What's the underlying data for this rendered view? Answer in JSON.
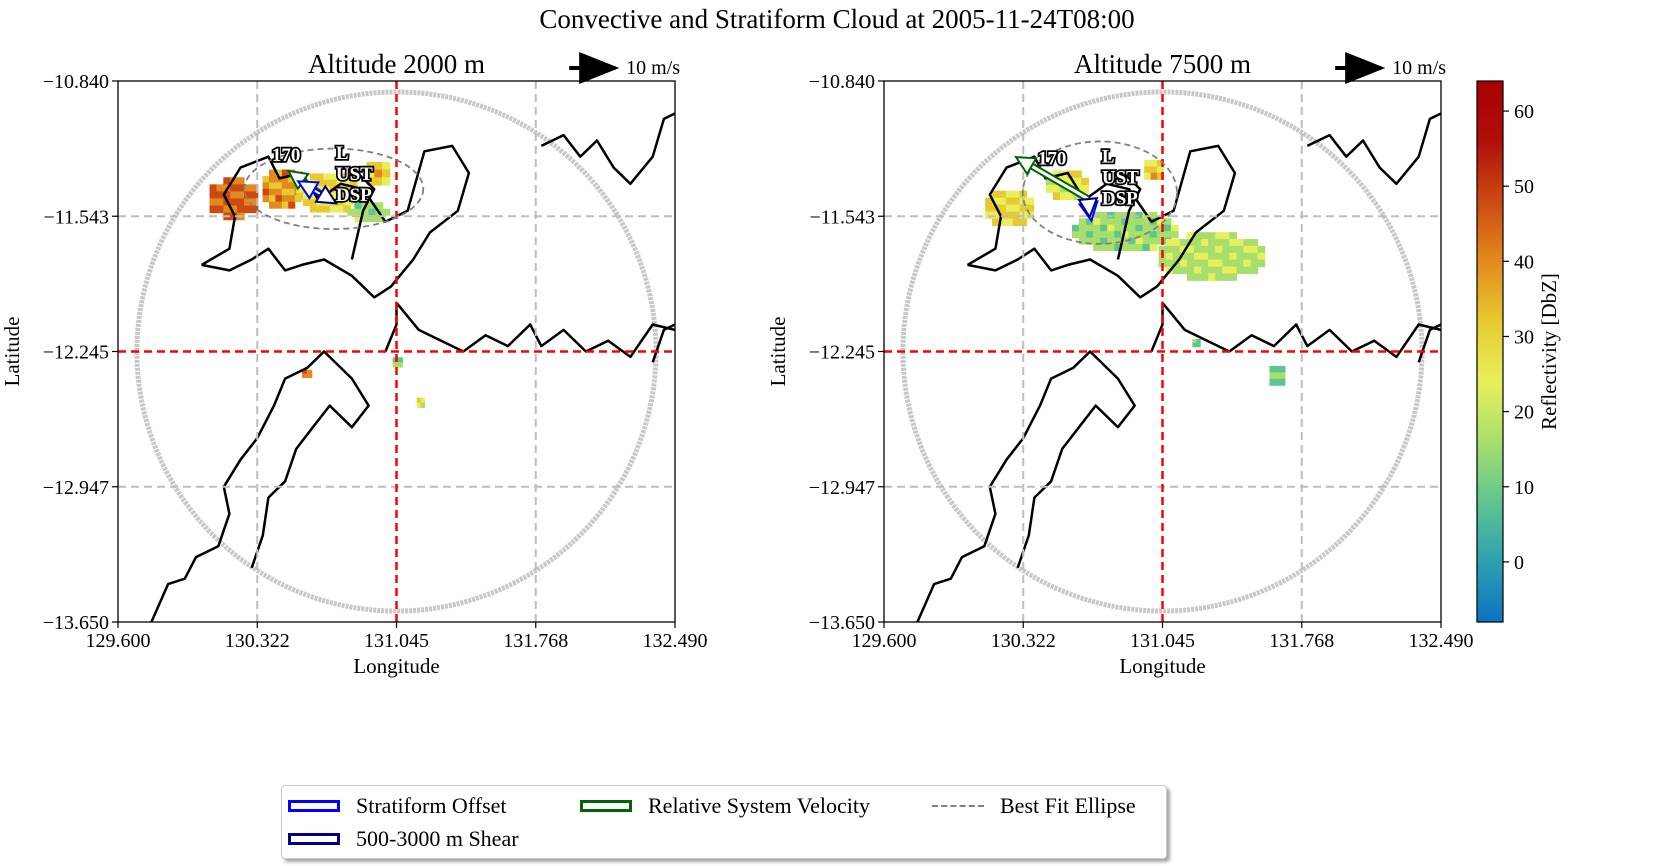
{
  "title": "Convective and Stratiform Cloud at 2005-11-24T08:00",
  "chart_data": [
    {
      "type": "heatmap",
      "title": "Altitude 2000 m",
      "xlabel": "Longitude",
      "ylabel": "Latitude",
      "xlim": [
        129.6,
        132.49
      ],
      "ylim": [
        -13.65,
        -10.84
      ],
      "xticks": [
        "129.600",
        "130.322",
        "131.045",
        "131.768",
        "132.490"
      ],
      "yticks": [
        "-10.840",
        "-11.543",
        "-12.245",
        "-12.947",
        "-13.650"
      ],
      "grid": true,
      "radar_center": [
        131.045,
        -12.245
      ],
      "ellipse": {
        "center": [
          130.72,
          -11.4
        ],
        "semi_axes_deg": [
          0.58,
          0.22
        ]
      },
      "scale_arrow_label": "10 m/s",
      "cell_labels": [
        "170",
        "L",
        "UST",
        "DSP"
      ],
      "reflectivity_regions": [
        {
          "lon": 130.2,
          "lat": -11.45,
          "dbz": 45,
          "w": 0.25,
          "h": 0.22
        },
        {
          "lon": 130.45,
          "lat": -11.4,
          "dbz": 38,
          "w": 0.2,
          "h": 0.2
        },
        {
          "lon": 130.7,
          "lat": -11.42,
          "dbz": 28,
          "w": 0.35,
          "h": 0.2
        },
        {
          "lon": 130.95,
          "lat": -11.32,
          "dbz": 30,
          "w": 0.12,
          "h": 0.12
        },
        {
          "lon": 130.9,
          "lat": -11.52,
          "dbz": 15,
          "w": 0.22,
          "h": 0.1
        },
        {
          "lon": 130.58,
          "lat": -12.36,
          "dbz": 42,
          "w": 0.05,
          "h": 0.04
        },
        {
          "lon": 131.05,
          "lat": -12.3,
          "dbz": 12,
          "w": 0.05,
          "h": 0.05
        },
        {
          "lon": 131.17,
          "lat": -12.51,
          "dbz": 22,
          "w": 0.04,
          "h": 0.05
        }
      ],
      "vectors_ms": {
        "relative_system_velocity": [
          -4.2,
          3.0
        ],
        "stratiform_offset": [
          -2.8,
          1.6
        ],
        "shear_500_3000": [
          1.5,
          -0.9
        ]
      }
    },
    {
      "type": "heatmap",
      "title": "Altitude 7500 m",
      "xlabel": "Longitude",
      "ylabel": "Latitude",
      "xlim": [
        129.6,
        132.49
      ],
      "ylim": [
        -13.65,
        -10.84
      ],
      "xticks": [
        "129.600",
        "130.322",
        "131.045",
        "131.768",
        "132.490"
      ],
      "yticks": [
        "-10.840",
        "-11.543",
        "-12.245",
        "-12.947",
        "-13.650"
      ],
      "grid": true,
      "radar_center": [
        131.045,
        -12.245
      ],
      "ellipse": {
        "center": [
          130.72,
          -11.42
        ],
        "semi_axes_deg": [
          0.5,
          0.28
        ]
      },
      "scale_arrow_label": "10 m/s",
      "cell_labels": [
        "170",
        "L",
        "UST",
        "DSP"
      ],
      "reflectivity_regions": [
        {
          "lon": 130.25,
          "lat": -11.5,
          "dbz": 28,
          "w": 0.25,
          "h": 0.18
        },
        {
          "lon": 130.55,
          "lat": -11.38,
          "dbz": 25,
          "w": 0.22,
          "h": 0.15
        },
        {
          "lon": 130.85,
          "lat": -11.62,
          "dbz": 15,
          "w": 0.55,
          "h": 0.2
        },
        {
          "lon": 131.3,
          "lat": -11.75,
          "dbz": 18,
          "w": 0.55,
          "h": 0.25
        },
        {
          "lon": 131.0,
          "lat": -11.3,
          "dbz": 30,
          "w": 0.1,
          "h": 0.1
        },
        {
          "lon": 131.22,
          "lat": -12.2,
          "dbz": 10,
          "w": 0.04,
          "h": 0.04
        },
        {
          "lon": 131.64,
          "lat": -12.37,
          "dbz": 12,
          "w": 0.08,
          "h": 0.1
        }
      ],
      "vectors_ms": {
        "relative_system_velocity": [
          -9.5,
          5.5
        ],
        "stratiform_offset": [
          0.4,
          -2.5
        ],
        "shear_500_3000": [
          0.2,
          -2.0
        ]
      }
    }
  ],
  "colorbar": {
    "label": "Reflectivity [DbZ]",
    "range": [
      -8,
      64
    ],
    "ticks": [
      "0",
      "10",
      "20",
      "30",
      "40",
      "50",
      "60"
    ],
    "tick_values": [
      0,
      10,
      20,
      30,
      40,
      50,
      60
    ],
    "colors": [
      "#0c72c2",
      "#2ea0b2",
      "#5fc58e",
      "#a8df6c",
      "#e8ef5c",
      "#e8c930",
      "#e38a1e",
      "#cc4a12",
      "#b00f0c",
      "#a80000"
    ]
  },
  "legend": {
    "items": [
      {
        "label": "Stratiform Offset",
        "color": "#0000ff"
      },
      {
        "label": "Relative System Velocity",
        "color": "#006400"
      },
      {
        "label": "Best Fit Ellipse",
        "color": "#808080"
      },
      {
        "label": "500-3000 m Shear",
        "color": "#00008b"
      }
    ]
  },
  "colors": {
    "grid": "#bdbdbd",
    "radar_cross": "#ff0000",
    "radar_ring": "#c8c8c8",
    "coast": "#000000"
  }
}
